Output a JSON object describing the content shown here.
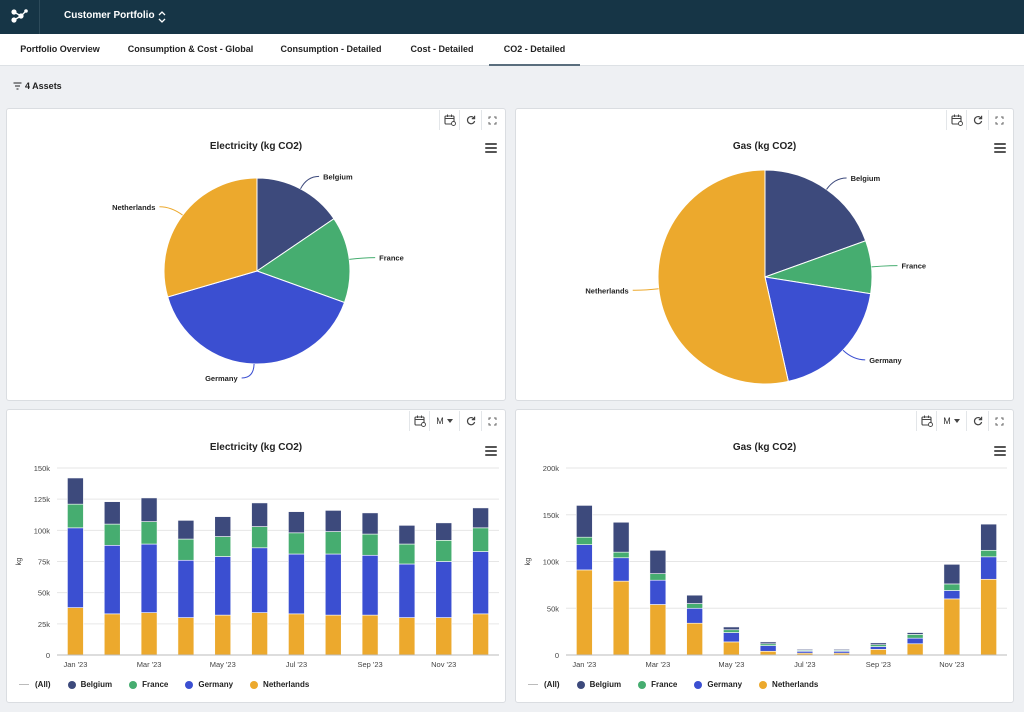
{
  "header": {
    "app_title": "Customer Portfolio"
  },
  "tabs": [
    {
      "label": "Portfolio Overview"
    },
    {
      "label": "Consumption & Cost - Global"
    },
    {
      "label": "Consumption - Detailed"
    },
    {
      "label": "Cost - Detailed"
    },
    {
      "label": "CO2 - Detailed",
      "active": true
    }
  ],
  "filter": {
    "label": "4 Assets"
  },
  "toolbar": {
    "interval_label": "M"
  },
  "colors": {
    "Belgium": "#3d4a7c",
    "France": "#46ad70",
    "Germany": "#3b4fd1",
    "Netherlands": "#eca92d"
  },
  "legend": {
    "all_label": "(All)",
    "items": [
      "Belgium",
      "France",
      "Germany",
      "Netherlands"
    ]
  },
  "panels": {
    "elec_pie": {
      "title": "Electricity (kg CO2)"
    },
    "gas_pie": {
      "title": "Gas (kg CO2)"
    },
    "elec_bar": {
      "title": "Electricity (kg CO2)"
    },
    "gas_bar": {
      "title": "Gas (kg CO2)"
    }
  },
  "chart_data": [
    {
      "type": "pie",
      "title": "Electricity (kg CO2)",
      "labels": [
        "Belgium",
        "France",
        "Germany",
        "Netherlands"
      ],
      "values": [
        15.5,
        15,
        40,
        29.5
      ]
    },
    {
      "type": "pie",
      "title": "Gas (kg CO2)",
      "labels": [
        "Belgium",
        "France",
        "Germany",
        "Netherlands"
      ],
      "values": [
        19.5,
        8,
        19,
        53.5
      ]
    },
    {
      "type": "bar",
      "stacked": true,
      "title": "Electricity (kg CO2)",
      "ylabel": "kg",
      "ylim": [
        0,
        150000
      ],
      "yticks": [
        "0",
        "25k",
        "50k",
        "75k",
        "100k",
        "125k",
        "150k"
      ],
      "categories": [
        "Jan '23",
        "Feb '23",
        "Mar '23",
        "Apr '23",
        "May '23",
        "Jun '23",
        "Jul '23",
        "Aug '23",
        "Sep '23",
        "Oct '23",
        "Nov '23",
        "Dec '23"
      ],
      "xtick_labels": [
        "Jan '23",
        "",
        "Mar '23",
        "",
        "May '23",
        "",
        "Jul '23",
        "",
        "Sep '23",
        "",
        "Nov '23",
        ""
      ],
      "series": [
        {
          "name": "Netherlands",
          "values": [
            38000,
            33000,
            34000,
            30000,
            32000,
            34000,
            33000,
            32000,
            32000,
            30000,
            30000,
            33000
          ]
        },
        {
          "name": "Germany",
          "values": [
            64000,
            55000,
            55000,
            46000,
            47000,
            52000,
            48000,
            49000,
            48000,
            43000,
            45000,
            50000
          ]
        },
        {
          "name": "France",
          "values": [
            19000,
            17000,
            18000,
            17000,
            16000,
            17000,
            17000,
            18000,
            17000,
            16000,
            17000,
            19000
          ]
        },
        {
          "name": "Belgium",
          "values": [
            21000,
            18000,
            19000,
            15000,
            16000,
            19000,
            17000,
            17000,
            17000,
            15000,
            14000,
            16000
          ]
        }
      ]
    },
    {
      "type": "bar",
      "stacked": true,
      "title": "Gas (kg CO2)",
      "ylabel": "kg",
      "ylim": [
        0,
        200000
      ],
      "yticks": [
        "0",
        "50k",
        "100k",
        "150k",
        "200k"
      ],
      "categories": [
        "Jan '23",
        "Feb '23",
        "Mar '23",
        "Apr '23",
        "May '23",
        "Jun '23",
        "Jul '23",
        "Aug '23",
        "Sep '23",
        "Oct '23",
        "Nov '23",
        "Dec '23"
      ],
      "xtick_labels": [
        "Jan '23",
        "",
        "Mar '23",
        "",
        "May '23",
        "",
        "Jul '23",
        "",
        "Sep '23",
        "",
        "Nov '23",
        ""
      ],
      "series": [
        {
          "name": "Netherlands",
          "values": [
            91000,
            79000,
            54000,
            34000,
            14000,
            4000,
            2000,
            2000,
            6000,
            12000,
            60000,
            81000
          ]
        },
        {
          "name": "Germany",
          "values": [
            27000,
            25000,
            26000,
            16000,
            10000,
            6000,
            2000,
            2000,
            3000,
            6000,
            9000,
            24000
          ]
        },
        {
          "name": "France",
          "values": [
            8000,
            6000,
            7000,
            5000,
            3000,
            2000,
            1000,
            1000,
            2000,
            4000,
            7000,
            7000
          ]
        },
        {
          "name": "Belgium",
          "values": [
            34000,
            32000,
            25000,
            9000,
            3000,
            2000,
            1000,
            1000,
            2000,
            2000,
            21000,
            28000
          ]
        }
      ]
    }
  ]
}
